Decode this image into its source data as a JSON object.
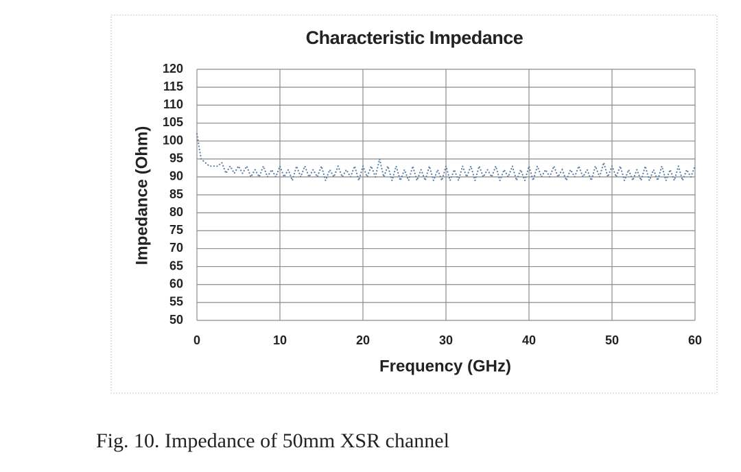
{
  "chart_data": {
    "type": "line",
    "title": "Characteristic Impedance",
    "x_label": "Frequency (GHz)",
    "y_label": "Impedance (Ohm)",
    "x": [
      0,
      0.5,
      1,
      1.5,
      2,
      2.5,
      3,
      3.5,
      4,
      4.5,
      5,
      5.5,
      6,
      6.5,
      7,
      7.5,
      8,
      8.5,
      9,
      9.5,
      10,
      10.5,
      11,
      11.5,
      12,
      12.5,
      13,
      13.5,
      14,
      14.5,
      15,
      15.5,
      16,
      16.5,
      17,
      17.5,
      18,
      18.5,
      19,
      19.5,
      20,
      20.5,
      21,
      21.5,
      22,
      22.5,
      23,
      23.5,
      24,
      24.5,
      25,
      25.5,
      26,
      26.5,
      27,
      27.5,
      28,
      28.5,
      29,
      29.5,
      30,
      30.5,
      31,
      31.5,
      32,
      32.5,
      33,
      33.5,
      34,
      34.5,
      35,
      35.5,
      36,
      36.5,
      37,
      37.5,
      38,
      38.5,
      39,
      39.5,
      40,
      40.5,
      41,
      41.5,
      42,
      42.5,
      43,
      43.5,
      44,
      44.5,
      45,
      45.5,
      46,
      46.5,
      47,
      47.5,
      48,
      48.5,
      49,
      49.5,
      50,
      50.5,
      51,
      51.5,
      52,
      52.5,
      53,
      53.5,
      54,
      54.5,
      55,
      55.5,
      56,
      56.5,
      57,
      57.5,
      58,
      58.5,
      59,
      59.5,
      60
    ],
    "series": [
      {
        "color": "#5b7fa6",
        "values": [
          102,
          95,
          94,
          93,
          93,
          93,
          94,
          91,
          93,
          91,
          93,
          91,
          93,
          90,
          92,
          90,
          93,
          90,
          92,
          90,
          93,
          90,
          92,
          89,
          93,
          90,
          93,
          90,
          92,
          90,
          93,
          89,
          92,
          90,
          93,
          90,
          92,
          90,
          93,
          89,
          93,
          90,
          93,
          90,
          95,
          90,
          93,
          89,
          93,
          89,
          92,
          89,
          93,
          89,
          92,
          89,
          93,
          89,
          92,
          89,
          93,
          89,
          92,
          89,
          93,
          90,
          93,
          89,
          93,
          90,
          92,
          90,
          93,
          89,
          92,
          90,
          93,
          89,
          92,
          89,
          93,
          89,
          93,
          90,
          92,
          90,
          93,
          90,
          92,
          89,
          92,
          90,
          93,
          90,
          92,
          89,
          93,
          90,
          94,
          90,
          93,
          90,
          93,
          89,
          92,
          89,
          92,
          89,
          93,
          89,
          92,
          89,
          93,
          89,
          92,
          89,
          93,
          89,
          92,
          90,
          93
        ]
      }
    ],
    "xlim": [
      0,
      60
    ],
    "xticks": [
      0,
      10,
      20,
      30,
      40,
      50,
      60
    ],
    "ylim": [
      50,
      120
    ],
    "yticks": [
      50,
      55,
      60,
      65,
      70,
      75,
      80,
      85,
      90,
      95,
      100,
      105,
      110,
      115,
      120
    ],
    "grid": true
  },
  "caption": "Fig. 10. Impedance of 50mm XSR channel"
}
